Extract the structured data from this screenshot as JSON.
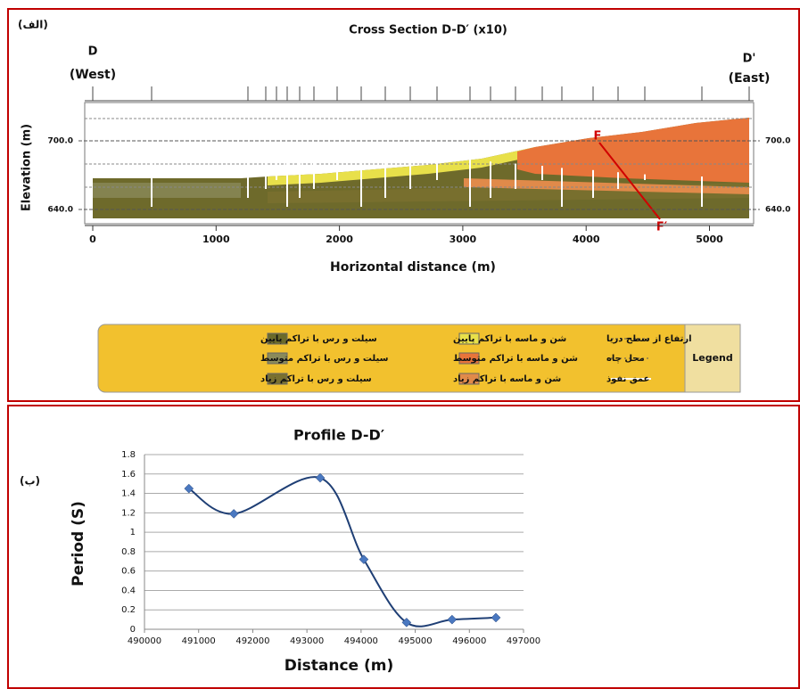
{
  "cross_section": {
    "panel_label": "(الف)",
    "title": "Cross Section D-D′ (x10)",
    "left_end": {
      "name": "D",
      "side": "(West)"
    },
    "right_end": {
      "name": "D'",
      "side": "(East)"
    },
    "y_label": "Elevation (m)",
    "x_label": "Horizontal distance (m)",
    "xlim": [
      0,
      5300
    ],
    "xticks": [
      0,
      1000,
      2000,
      3000,
      4000,
      5000
    ],
    "ylim": [
      628,
      733
    ],
    "yticks": [
      {
        "value": 640,
        "label": "640.0"
      },
      {
        "value": 700,
        "label": "700.0"
      }
    ],
    "fault_labels": [
      "F",
      "F′"
    ],
    "legend": {
      "title": "Legend",
      "items": [
        {
          "label": "ارتفاع از سطح دریا",
          "color": "#ffffff"
        },
        {
          "label": "محل چاه",
          "color": "#ffffff"
        },
        {
          "label": "عمق نفوذ",
          "color": "#ffffff"
        },
        {
          "label": "شن و ماسه با تراکم پایین",
          "color": "#e8e04a"
        },
        {
          "label": "شن و ماسه با تراکم متوسط",
          "color": "#e8743a"
        },
        {
          "label": "شن و ماسه با تراکم زیاد",
          "color": "#e08a4a"
        },
        {
          "label": "سیلت و رس با تراکم پایین",
          "color": "#6b6a2a"
        },
        {
          "label": "سیلت و رس با تراکم متوسط",
          "color": "#8a8a5a"
        },
        {
          "label": "سیلت و رس با تراکم زیاد",
          "color": "#7a7030"
        }
      ]
    }
  },
  "chart_data": {
    "type": "line",
    "panel_label": "(ب)",
    "title": "Profile D-D′",
    "x_label": "Distance (m)",
    "y_label": "Period (S)",
    "x": [
      490820,
      491650,
      493245,
      494050,
      494840,
      495680,
      496490
    ],
    "values": [
      1.45,
      1.19,
      1.56,
      0.72,
      0.07,
      0.1,
      0.12
    ],
    "color": "#1f3f75",
    "marker_color": "#4a78c0",
    "xlim": [
      490000,
      497000
    ],
    "xticks": [
      490000,
      491000,
      492000,
      493000,
      494000,
      495000,
      496000,
      497000
    ],
    "ylim": [
      0,
      1.8
    ],
    "yticks": [
      0,
      0.2,
      0.4,
      0.6,
      0.8,
      1,
      1.2,
      1.4,
      1.6,
      1.8
    ],
    "grid": true
  }
}
